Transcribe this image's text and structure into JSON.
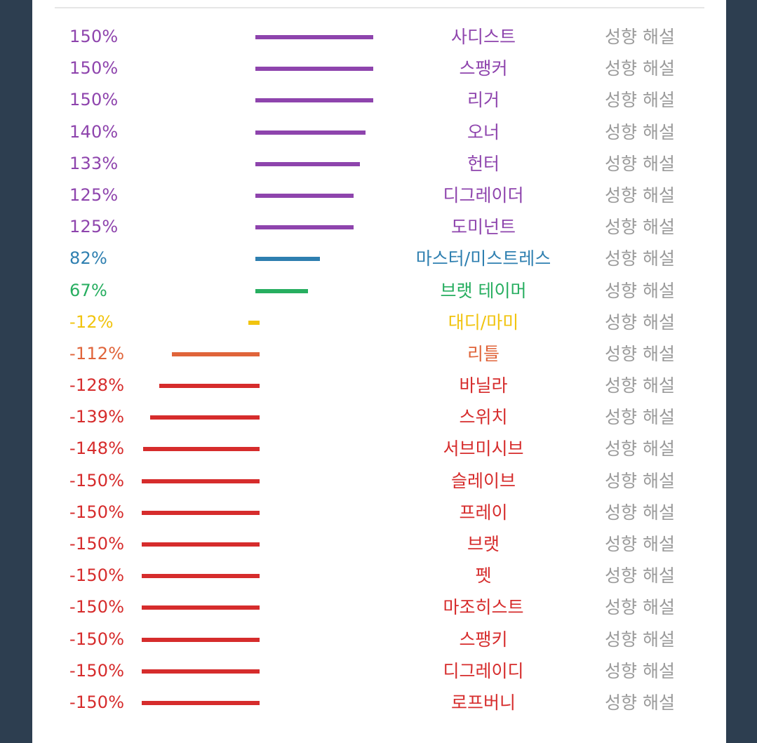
{
  "colors": {
    "purple": "#8e44ad",
    "blue": "#2e7fb0",
    "green": "#27ae60",
    "yellow": "#f1c40f",
    "orange": "#e0643a",
    "red": "#d62c2c",
    "gray": "#9b9b9b",
    "divider": "#e6e6e6",
    "background": "#2d3e50",
    "panel": "#ffffff"
  },
  "rows": [
    {
      "percent_label": "150%",
      "value": 150,
      "name": "사디스트",
      "link": "성향 해설",
      "color": "#8e44ad"
    },
    {
      "percent_label": "150%",
      "value": 150,
      "name": "스팽커",
      "link": "성향 해설",
      "color": "#8e44ad"
    },
    {
      "percent_label": "150%",
      "value": 150,
      "name": "리거",
      "link": "성향 해설",
      "color": "#8e44ad"
    },
    {
      "percent_label": "140%",
      "value": 140,
      "name": "오너",
      "link": "성향 해설",
      "color": "#8e44ad"
    },
    {
      "percent_label": "133%",
      "value": 133,
      "name": "헌터",
      "link": "성향 해설",
      "color": "#8e44ad"
    },
    {
      "percent_label": "125%",
      "value": 125,
      "name": "디그레이더",
      "link": "성향 해설",
      "color": "#8e44ad"
    },
    {
      "percent_label": "125%",
      "value": 125,
      "name": "도미넌트",
      "link": "성향 해설",
      "color": "#8e44ad"
    },
    {
      "percent_label": "82%",
      "value": 82,
      "name": "마스터/미스트레스",
      "link": "성향 해설",
      "color": "#2e7fb0"
    },
    {
      "percent_label": "67%",
      "value": 67,
      "name": "브랫 테이머",
      "link": "성향 해설",
      "color": "#27ae60"
    },
    {
      "percent_label": "-12%",
      "value": -12,
      "name": "대디/마미",
      "link": "성향 해설",
      "color": "#f1c40f"
    },
    {
      "percent_label": "-112%",
      "value": -112,
      "name": "리틀",
      "link": "성향 해설",
      "color": "#e0643a"
    },
    {
      "percent_label": "-128%",
      "value": -128,
      "name": "바닐라",
      "link": "성향 해설",
      "color": "#d62c2c"
    },
    {
      "percent_label": "-139%",
      "value": -139,
      "name": "스위치",
      "link": "성향 해설",
      "color": "#d62c2c"
    },
    {
      "percent_label": "-148%",
      "value": -148,
      "name": "서브미시브",
      "link": "성향 해설",
      "color": "#d62c2c"
    },
    {
      "percent_label": "-150%",
      "value": -150,
      "name": "슬레이브",
      "link": "성향 해설",
      "color": "#d62c2c"
    },
    {
      "percent_label": "-150%",
      "value": -150,
      "name": "프레이",
      "link": "성향 해설",
      "color": "#d62c2c"
    },
    {
      "percent_label": "-150%",
      "value": -150,
      "name": "브랫",
      "link": "성향 해설",
      "color": "#d62c2c"
    },
    {
      "percent_label": "-150%",
      "value": -150,
      "name": "펫",
      "link": "성향 해설",
      "color": "#d62c2c"
    },
    {
      "percent_label": "-150%",
      "value": -150,
      "name": "마조히스트",
      "link": "성향 해설",
      "color": "#d62c2c"
    },
    {
      "percent_label": "-150%",
      "value": -150,
      "name": "스팽키",
      "link": "성향 해설",
      "color": "#d62c2c"
    },
    {
      "percent_label": "-150%",
      "value": -150,
      "name": "디그레이디",
      "link": "성향 해설",
      "color": "#d62c2c"
    },
    {
      "percent_label": "-150%",
      "value": -150,
      "name": "로프버니",
      "link": "성향 해설",
      "color": "#d62c2c"
    }
  ]
}
